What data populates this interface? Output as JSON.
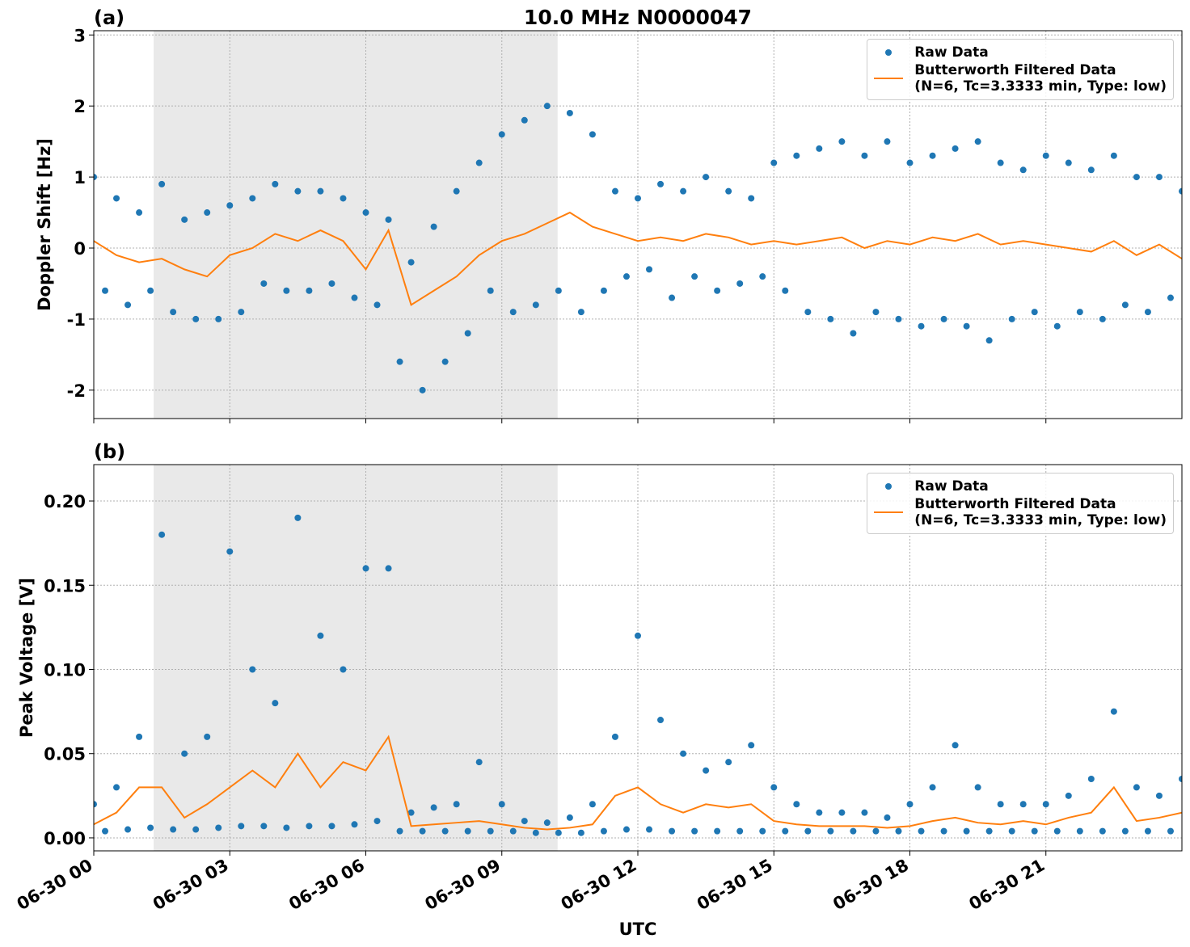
{
  "chart_data": [
    {
      "type": "line",
      "panel_label": "(a)",
      "title": "10.0 MHz N0000047",
      "ylabel": "Doppler Shift [Hz]",
      "xlim": [
        0,
        24
      ],
      "xticks": [
        0,
        3,
        6,
        9,
        12,
        15,
        18,
        21
      ],
      "show_xtick_labels": false,
      "ylim": [
        -2.4,
        3.06
      ],
      "yticks": [
        -2,
        -1,
        0,
        1,
        2,
        3
      ],
      "grid": true,
      "legend": "upper right",
      "shaded_span": [
        1.32,
        10.23
      ],
      "series": [
        {
          "name": "Raw Data",
          "kind": "scatter",
          "color": "#1f77b4",
          "x": [
            0,
            0.25,
            0.5,
            0.75,
            1,
            1.25,
            1.5,
            1.75,
            2,
            2.25,
            2.5,
            2.75,
            3,
            3.25,
            3.5,
            3.75,
            4,
            4.25,
            4.5,
            4.75,
            5,
            5.25,
            5.5,
            5.75,
            6,
            6.25,
            6.5,
            6.75,
            7,
            7.25,
            7.5,
            7.75,
            8,
            8.25,
            8.5,
            8.75,
            9,
            9.25,
            9.5,
            9.75,
            10,
            10.25,
            10.5,
            10.75,
            11,
            11.25,
            11.5,
            11.75,
            12,
            12.25,
            12.5,
            12.75,
            13,
            13.25,
            13.5,
            13.75,
            14,
            14.25,
            14.5,
            14.75,
            15,
            15.25,
            15.5,
            15.75,
            16,
            16.25,
            16.5,
            16.75,
            17,
            17.25,
            17.5,
            17.75,
            18,
            18.25,
            18.5,
            18.75,
            19,
            19.25,
            19.5,
            19.75,
            20,
            20.25,
            20.5,
            20.75,
            21,
            21.25,
            21.5,
            21.75,
            22,
            22.25,
            22.5,
            22.75,
            23,
            23.25,
            23.5,
            23.75,
            24
          ],
          "values": [
            1.0,
            -0.6,
            0.7,
            -0.8,
            0.5,
            -0.6,
            0.9,
            -0.9,
            0.4,
            -1.0,
            0.5,
            -1.0,
            0.6,
            -0.9,
            0.7,
            -0.5,
            0.9,
            -0.6,
            0.8,
            -0.6,
            0.8,
            -0.5,
            0.7,
            -0.7,
            0.5,
            -0.8,
            0.4,
            -1.6,
            -0.2,
            -2.0,
            0.3,
            -1.6,
            0.8,
            -1.2,
            1.2,
            -0.6,
            1.6,
            -0.9,
            1.8,
            -0.8,
            2.0,
            -0.6,
            1.9,
            -0.9,
            1.6,
            -0.6,
            0.8,
            -0.4,
            0.7,
            -0.3,
            0.9,
            -0.7,
            0.8,
            -0.4,
            1.0,
            -0.6,
            0.8,
            -0.5,
            0.7,
            -0.4,
            1.2,
            -0.6,
            1.3,
            -0.9,
            1.4,
            -1.0,
            1.5,
            -1.2,
            1.3,
            -0.9,
            1.5,
            -1.0,
            1.2,
            -1.1,
            1.3,
            -1.0,
            1.4,
            -1.1,
            1.5,
            -1.3,
            1.2,
            -1.0,
            1.1,
            -0.9,
            1.3,
            -1.1,
            1.2,
            -0.9,
            1.1,
            -1.0,
            1.3,
            -0.8,
            1.0,
            -0.9,
            1.0,
            -0.7,
            0.8
          ]
        },
        {
          "name": "Butterworth Filtered Data\n(N=6, Tc=3.3333 min, Type: low)",
          "kind": "line",
          "color": "#ff7f0e",
          "x": [
            0,
            0.5,
            1,
            1.5,
            2,
            2.5,
            3,
            3.5,
            4,
            4.5,
            5,
            5.5,
            6,
            6.5,
            7,
            7.5,
            8,
            8.5,
            9,
            9.5,
            10,
            10.5,
            11,
            11.5,
            12,
            12.5,
            13,
            13.5,
            14,
            14.5,
            15,
            15.5,
            16,
            16.5,
            17,
            17.5,
            18,
            18.5,
            19,
            19.5,
            20,
            20.5,
            21,
            21.5,
            22,
            22.5,
            23,
            23.5,
            24
          ],
          "values": [
            0.1,
            -0.1,
            -0.2,
            -0.15,
            -0.3,
            -0.4,
            -0.1,
            0,
            0.2,
            0.1,
            0.25,
            0.1,
            -0.3,
            0.25,
            -0.8,
            -0.6,
            -0.4,
            -0.1,
            0.1,
            0.2,
            0.35,
            0.5,
            0.3,
            0.2,
            0.1,
            0.15,
            0.1,
            0.2,
            0.15,
            0.05,
            0.1,
            0.05,
            0.1,
            0.15,
            0,
            0.1,
            0.05,
            0.15,
            0.1,
            0.2,
            0.05,
            0.1,
            0.05,
            0,
            -0.05,
            0.1,
            -0.1,
            0.05,
            -0.15
          ]
        }
      ]
    },
    {
      "type": "line",
      "panel_label": "(b)",
      "ylabel": "Peak Voltage [V]",
      "xlabel": "UTC",
      "xlim": [
        0,
        24
      ],
      "xticks": [
        {
          "value": 0,
          "label": "06-30 00"
        },
        {
          "value": 3,
          "label": "06-30 03"
        },
        {
          "value": 6,
          "label": "06-30 06"
        },
        {
          "value": 9,
          "label": "06-30 09"
        },
        {
          "value": 12,
          "label": "06-30 12"
        },
        {
          "value": 15,
          "label": "06-30 15"
        },
        {
          "value": 18,
          "label": "06-30 18"
        },
        {
          "value": 21,
          "label": "06-30 21"
        }
      ],
      "show_xtick_labels": true,
      "ylim": [
        -0.0077,
        0.2216
      ],
      "yticks": [
        {
          "value": 0,
          "label": "0.00"
        },
        0.05,
        {
          "value": 0.1,
          "label": "0.10"
        },
        0.15,
        {
          "value": 0.2,
          "label": "0.20"
        }
      ],
      "grid": true,
      "legend": "upper right",
      "shaded_span": [
        1.32,
        10.23
      ],
      "series": [
        {
          "name": "Raw Data",
          "kind": "scatter",
          "color": "#1f77b4",
          "x": [
            0,
            0.25,
            0.5,
            0.75,
            1,
            1.25,
            1.5,
            1.75,
            2,
            2.25,
            2.5,
            2.75,
            3,
            3.25,
            3.5,
            3.75,
            4,
            4.25,
            4.5,
            4.75,
            5,
            5.25,
            5.5,
            5.75,
            6,
            6.25,
            6.5,
            6.75,
            7,
            7.25,
            7.5,
            7.75,
            8,
            8.25,
            8.5,
            8.75,
            9,
            9.25,
            9.5,
            9.75,
            10,
            10.25,
            10.5,
            10.75,
            11,
            11.25,
            11.5,
            11.75,
            12,
            12.25,
            12.5,
            12.75,
            13,
            13.25,
            13.5,
            13.75,
            14,
            14.25,
            14.5,
            14.75,
            15,
            15.25,
            15.5,
            15.75,
            16,
            16.25,
            16.5,
            16.75,
            17,
            17.25,
            17.5,
            17.75,
            18,
            18.25,
            18.5,
            18.75,
            19,
            19.25,
            19.5,
            19.75,
            20,
            20.25,
            20.5,
            20.75,
            21,
            21.25,
            21.5,
            21.75,
            22,
            22.25,
            22.5,
            22.75,
            23,
            23.25,
            23.5,
            23.75,
            24
          ],
          "values": [
            0.02,
            0.004,
            0.03,
            0.005,
            0.06,
            0.006,
            0.18,
            0.005,
            0.05,
            0.005,
            0.06,
            0.006,
            0.17,
            0.007,
            0.1,
            0.007,
            0.08,
            0.006,
            0.19,
            0.007,
            0.12,
            0.007,
            0.1,
            0.008,
            0.16,
            0.01,
            0.16,
            0.004,
            0.015,
            0.004,
            0.018,
            0.004,
            0.02,
            0.004,
            0.045,
            0.004,
            0.02,
            0.004,
            0.01,
            0.003,
            0.009,
            0.003,
            0.012,
            0.003,
            0.02,
            0.004,
            0.06,
            0.005,
            0.12,
            0.005,
            0.07,
            0.004,
            0.05,
            0.004,
            0.04,
            0.004,
            0.045,
            0.004,
            0.055,
            0.004,
            0.03,
            0.004,
            0.02,
            0.004,
            0.015,
            0.004,
            0.015,
            0.004,
            0.015,
            0.004,
            0.012,
            0.004,
            0.02,
            0.004,
            0.03,
            0.004,
            0.055,
            0.004,
            0.03,
            0.004,
            0.02,
            0.004,
            0.02,
            0.004,
            0.02,
            0.004,
            0.025,
            0.004,
            0.035,
            0.004,
            0.075,
            0.004,
            0.03,
            0.004,
            0.025,
            0.004,
            0.035
          ]
        },
        {
          "name": "Butterworth Filtered Data\n(N=6, Tc=3.3333 min, Type: low)",
          "kind": "line",
          "color": "#ff7f0e",
          "x": [
            0,
            0.5,
            1,
            1.5,
            2,
            2.5,
            3,
            3.5,
            4,
            4.5,
            5,
            5.5,
            6,
            6.5,
            7,
            7.5,
            8,
            8.5,
            9,
            9.5,
            10,
            10.5,
            11,
            11.5,
            12,
            12.5,
            13,
            13.5,
            14,
            14.5,
            15,
            15.5,
            16,
            16.5,
            17,
            17.5,
            18,
            18.5,
            19,
            19.5,
            20,
            20.5,
            21,
            21.5,
            22,
            22.5,
            23,
            23.5,
            24
          ],
          "values": [
            0.008,
            0.015,
            0.03,
            0.03,
            0.012,
            0.02,
            0.03,
            0.04,
            0.03,
            0.05,
            0.03,
            0.045,
            0.04,
            0.06,
            0.007,
            0.008,
            0.009,
            0.01,
            0.008,
            0.006,
            0.005,
            0.006,
            0.008,
            0.025,
            0.03,
            0.02,
            0.015,
            0.02,
            0.018,
            0.02,
            0.01,
            0.008,
            0.007,
            0.007,
            0.007,
            0.006,
            0.007,
            0.01,
            0.012,
            0.009,
            0.008,
            0.01,
            0.008,
            0.012,
            0.015,
            0.03,
            0.01,
            0.012,
            0.015
          ]
        }
      ]
    }
  ]
}
